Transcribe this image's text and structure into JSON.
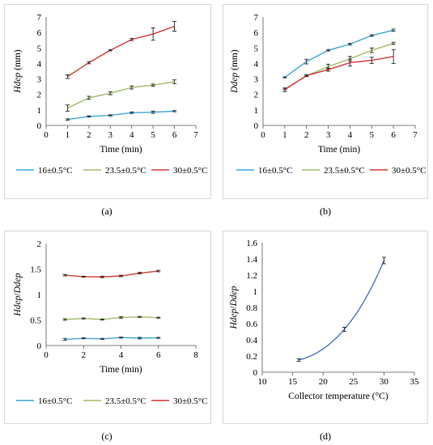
{
  "figure": {
    "panel_letters": [
      "(a)",
      "(b)",
      "(c)",
      "(d)"
    ],
    "legend_labels": [
      "16±0.5°C",
      "23.5±0.5°C",
      "30±0.5°C"
    ]
  },
  "colors": {
    "blue": "#3fa9d8",
    "green": "#a3be6a",
    "red": "#d63b37",
    "curve": "#4a78c2"
  },
  "chart_data": [
    {
      "type": "line",
      "panel": "(a)",
      "xlabel": "Time (min)",
      "ylabel": "Hdep (mm)",
      "xlim": [
        0,
        7
      ],
      "ylim": [
        0,
        7
      ],
      "xticks": [
        0,
        1,
        2,
        3,
        4,
        5,
        6,
        7
      ],
      "yticks": [
        0,
        1,
        2,
        3,
        4,
        5,
        6,
        7
      ],
      "legend_position": "bottom",
      "x": [
        1,
        2,
        3,
        4,
        5,
        6
      ],
      "series": [
        {
          "name": "16±0.5°C",
          "values": [
            0.38,
            0.58,
            0.65,
            0.82,
            0.85,
            0.92
          ],
          "errors": [
            0.05,
            0.04,
            0.04,
            0.05,
            0.07,
            0.04
          ]
        },
        {
          "name": "23.5±0.5°C",
          "values": [
            1.12,
            1.78,
            2.08,
            2.45,
            2.6,
            2.82
          ],
          "errors": [
            0.2,
            0.1,
            0.1,
            0.1,
            0.07,
            0.12
          ]
        },
        {
          "name": "30±0.5°C",
          "values": [
            3.15,
            4.05,
            4.85,
            5.55,
            5.9,
            6.4
          ],
          "errors": [
            0.12,
            0.07,
            0.04,
            0.07,
            0.4,
            0.32
          ]
        }
      ]
    },
    {
      "type": "line",
      "panel": "(b)",
      "xlabel": "Time (min)",
      "ylabel": "Ddep (mm)",
      "xlim": [
        0,
        7
      ],
      "ylim": [
        0,
        7
      ],
      "xticks": [
        0,
        1,
        2,
        3,
        4,
        5,
        6,
        7
      ],
      "yticks": [
        0,
        1,
        2,
        3,
        4,
        5,
        6,
        7
      ],
      "legend_position": "bottom",
      "x": [
        1,
        2,
        3,
        4,
        5,
        6
      ],
      "series": [
        {
          "name": "16±0.5°C",
          "values": [
            3.1,
            4.12,
            4.85,
            5.25,
            5.8,
            6.15
          ],
          "errors": [
            0.03,
            0.15,
            0.05,
            0.05,
            0.05,
            0.07
          ]
        },
        {
          "name": "23.5±0.5°C",
          "values": [
            2.35,
            3.2,
            3.8,
            4.3,
            4.85,
            5.3
          ],
          "errors": [
            0.05,
            0.05,
            0.15,
            0.15,
            0.15,
            0.07
          ]
        },
        {
          "name": "30±0.5°C",
          "values": [
            2.3,
            3.22,
            3.6,
            4.05,
            4.2,
            4.45
          ],
          "errors": [
            0.12,
            0.05,
            0.1,
            0.22,
            0.2,
            0.45
          ]
        }
      ]
    },
    {
      "type": "line",
      "panel": "(c)",
      "xlabel": "Time (min)",
      "ylabel": "Hdep/Ddep",
      "xlim": [
        0,
        8
      ],
      "ylim": [
        0,
        2
      ],
      "xticks": [
        0,
        2,
        4,
        6,
        8
      ],
      "yticks": [
        0,
        0.5,
        1,
        1.5,
        2
      ],
      "legend_position": "bottom",
      "x": [
        1,
        2,
        3,
        4,
        5,
        6
      ],
      "series": [
        {
          "name": "16±0.5°C",
          "values": [
            0.12,
            0.14,
            0.13,
            0.155,
            0.145,
            0.15
          ],
          "errors": [
            0.02,
            0.01,
            0.01,
            0.01,
            0.015,
            0.01
          ]
        },
        {
          "name": "23.5±0.5°C",
          "values": [
            0.51,
            0.53,
            0.51,
            0.55,
            0.56,
            0.545
          ],
          "errors": [
            0.015,
            0.01,
            0.01,
            0.015,
            0.01,
            0.01
          ]
        },
        {
          "name": "30±0.5°C",
          "values": [
            1.38,
            1.35,
            1.345,
            1.365,
            1.42,
            1.46
          ],
          "errors": [
            0.015,
            0.01,
            0.015,
            0.015,
            0.015,
            0.015
          ]
        }
      ]
    },
    {
      "type": "line",
      "panel": "(d)",
      "xlabel": "Collector temperature (°C)",
      "ylabel": "Hdep/Ddep",
      "xlim": [
        10,
        35
      ],
      "ylim": [
        0,
        1.6
      ],
      "xticks": [
        10,
        15,
        20,
        25,
        30,
        35
      ],
      "yticks": [
        0,
        0.2,
        0.4,
        0.6,
        0.8,
        1,
        1.2,
        1.4,
        1.6
      ],
      "x": [
        16,
        23.5,
        30
      ],
      "series": [
        {
          "name": "",
          "values": [
            0.15,
            0.53,
            1.38
          ],
          "errors": [
            0.015,
            0.025,
            0.04
          ]
        }
      ]
    }
  ]
}
